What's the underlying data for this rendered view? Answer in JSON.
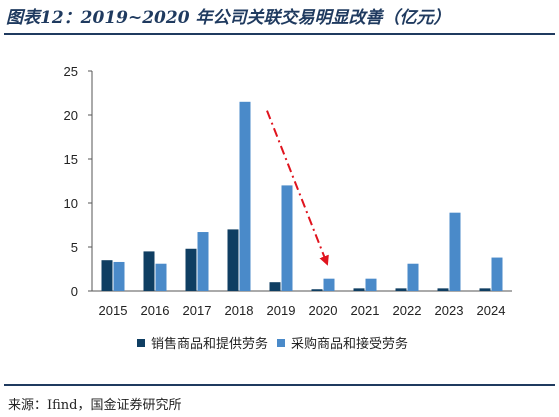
{
  "title": "图表12：2019~2020 年公司关联交易明显改善（亿元）",
  "source": "来源：Ifind，国金证券研究所",
  "colors": {
    "series1": "#0f3e62",
    "series2": "#4a8ac9",
    "arrow": "#e0141e",
    "axis": "#555555"
  },
  "chart_data": {
    "type": "bar",
    "categories": [
      "2015",
      "2016",
      "2017",
      "2018",
      "2019",
      "2020",
      "2021",
      "2022",
      "2023",
      "2024"
    ],
    "series": [
      {
        "name": "销售商品和提供劳务",
        "values": [
          3.5,
          4.5,
          4.8,
          7.0,
          1.0,
          0.2,
          0.3,
          0.3,
          0.3,
          0.3
        ]
      },
      {
        "name": "采购商品和接受劳务",
        "values": [
          3.3,
          3.1,
          6.7,
          21.5,
          12.0,
          1.4,
          1.4,
          3.1,
          8.9,
          3.8
        ]
      }
    ],
    "ylim": [
      0,
      25
    ],
    "yticks": [
      0,
      5,
      10,
      15,
      20,
      25
    ],
    "legend_position": "bottom",
    "annotation": "red dash-dot arrow pointing down from 2019 to 2020"
  }
}
